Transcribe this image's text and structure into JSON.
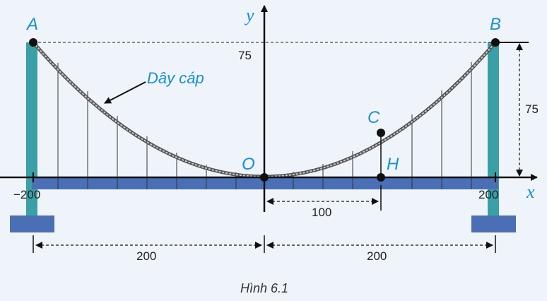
{
  "points": {
    "A": "A",
    "B": "B",
    "C": "C",
    "H": "H",
    "O": "O"
  },
  "axes": {
    "x": "x",
    "y": "y"
  },
  "labels": {
    "cable": "Dây cáp",
    "y_tick": "75",
    "height_right": "75",
    "x_left": "−200",
    "x_right": "200",
    "dist_OH": "100",
    "span_left": "200",
    "span_right": "200"
  },
  "caption": "Hình 6.1",
  "colors": {
    "tower": "#3aa0a6",
    "deck": "#4a6fb5",
    "accent": "#1a8fcf"
  }
}
